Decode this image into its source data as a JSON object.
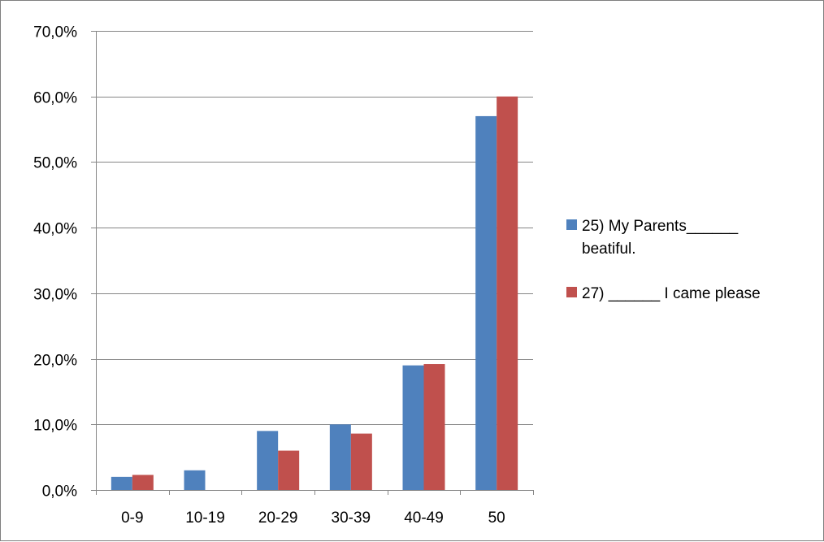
{
  "chart_data": {
    "type": "bar",
    "categories": [
      "0-9",
      "10-19",
      "20-29",
      "30-39",
      "40-49",
      "50"
    ],
    "series": [
      {
        "name": "25) My Parents______ beatiful.",
        "name_lines": [
          "25) My Parents______",
          "beatiful."
        ],
        "values": [
          2.0,
          3.0,
          9.0,
          10.0,
          19.0,
          57.0
        ],
        "color": "#4f81bd"
      },
      {
        "name": "27) ______ I came please",
        "name_lines": [
          "27) ______ I came please"
        ],
        "values": [
          2.3,
          0.0,
          6.0,
          8.6,
          19.2,
          60.0
        ],
        "color": "#c0504d"
      }
    ],
    "yticks": [
      "0,0%",
      "10,0%",
      "20,0%",
      "30,0%",
      "40,0%",
      "50,0%",
      "60,0%",
      "70,0%"
    ],
    "ylim": [
      0,
      70
    ],
    "y_unit": "percent",
    "grid": true,
    "legend_position": "right",
    "title": "",
    "xlabel": "",
    "ylabel": ""
  },
  "colors": {
    "axis": "#868686",
    "grid": "#868686",
    "frame": "#7f7f7f"
  }
}
